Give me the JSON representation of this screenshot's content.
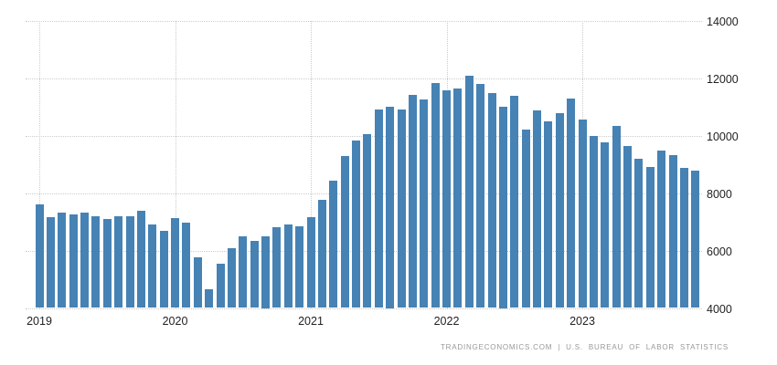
{
  "footer": {
    "credit": "TRADINGECONOMICS.COM | U.S. BUREAU OF LABOR STATISTICS"
  },
  "chart_data": {
    "type": "bar",
    "grid": "dotted",
    "legend": "none",
    "bar_color": "#4682b4",
    "ylim": [
      4000,
      14000
    ],
    "y_ticks": [
      4000,
      6000,
      8000,
      10000,
      12000,
      14000
    ],
    "y_tick_labels": [
      "4000",
      "6000",
      "8000",
      "10000",
      "12000",
      "14000"
    ],
    "x_tick_labels": [
      "2019",
      "2020",
      "2021",
      "2022",
      "2023"
    ],
    "x_tick_indices": [
      0,
      12,
      24,
      36,
      48
    ],
    "x": [
      "2019-01",
      "2019-02",
      "2019-03",
      "2019-04",
      "2019-05",
      "2019-06",
      "2019-07",
      "2019-08",
      "2019-09",
      "2019-10",
      "2019-11",
      "2019-12",
      "2020-01",
      "2020-02",
      "2020-03",
      "2020-04",
      "2020-05",
      "2020-06",
      "2020-07",
      "2020-08",
      "2020-09",
      "2020-10",
      "2020-11",
      "2020-12",
      "2021-01",
      "2021-02",
      "2021-03",
      "2021-04",
      "2021-05",
      "2021-06",
      "2021-07",
      "2021-08",
      "2021-09",
      "2021-10",
      "2021-11",
      "2021-12",
      "2022-01",
      "2022-02",
      "2022-03",
      "2022-04",
      "2022-05",
      "2022-06",
      "2022-07",
      "2022-08",
      "2022-09",
      "2022-10",
      "2022-11",
      "2022-12",
      "2023-01",
      "2023-02",
      "2023-03",
      "2023-04",
      "2023-05",
      "2023-06",
      "2023-07",
      "2023-08",
      "2023-09",
      "2023-10",
      "2023-11"
    ],
    "values": [
      7600,
      7150,
      7330,
      7260,
      7310,
      7200,
      7090,
      7200,
      7200,
      7390,
      6910,
      6690,
      7140,
      6980,
      5770,
      4660,
      5530,
      6090,
      6490,
      6330,
      6500,
      6820,
      6890,
      6840,
      7150,
      7770,
      8420,
      9280,
      9830,
      10060,
      10890,
      11000,
      10890,
      11420,
      11240,
      11830,
      11560,
      11650,
      12090,
      11790,
      11470,
      11000,
      11380,
      10200,
      10860,
      10490,
      10770,
      11270,
      10570,
      9980,
      9770,
      10330,
      9630,
      9180,
      8920,
      9490,
      9330,
      8880,
      8770
    ]
  }
}
